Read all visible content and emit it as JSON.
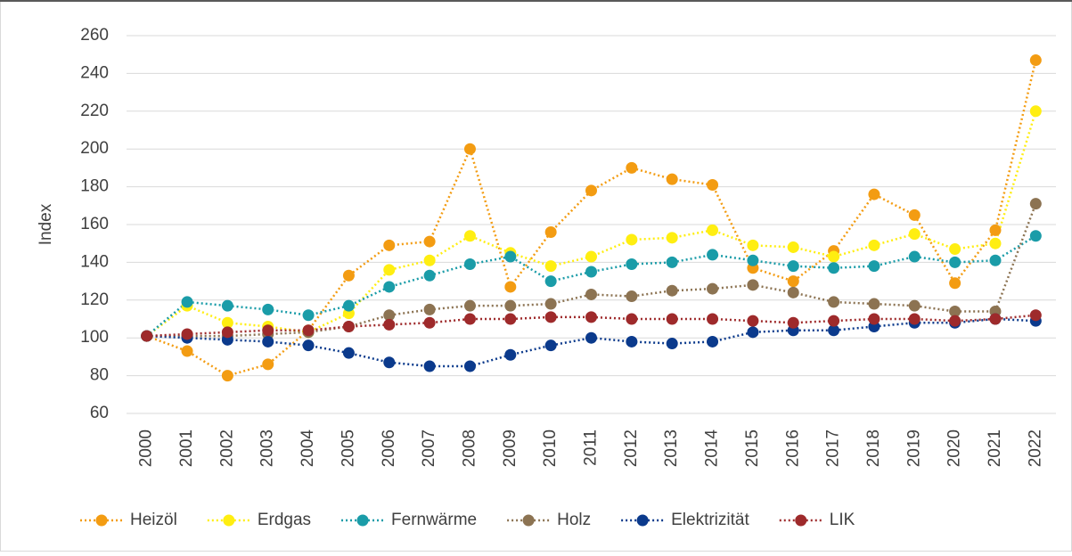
{
  "chart_data": {
    "type": "line",
    "y_label": "Index",
    "categories": [
      "2000",
      "2001",
      "2002",
      "2003",
      "2004",
      "2005",
      "2006",
      "2007",
      "2008",
      "2009",
      "2010",
      "2011",
      "2012",
      "2013",
      "2014",
      "2015",
      "2016",
      "2017",
      "2018",
      "2019",
      "2020",
      "2021",
      "2022"
    ],
    "ylim": [
      60,
      260
    ],
    "yticks": [
      60,
      80,
      100,
      120,
      140,
      160,
      180,
      200,
      220,
      240,
      260
    ],
    "grid": true,
    "legend": "bottom",
    "series": [
      {
        "name": "Heizöl",
        "color": "#f39c12",
        "values": [
          101,
          93,
          80,
          86,
          104,
          133,
          149,
          151,
          200,
          127,
          156,
          178,
          190,
          184,
          181,
          137,
          130,
          146,
          176,
          165,
          129,
          157,
          247
        ]
      },
      {
        "name": "Erdgas",
        "color": "#ffee11",
        "values": [
          101,
          117,
          108,
          106,
          103,
          113,
          136,
          141,
          154,
          145,
          138,
          143,
          152,
          153,
          157,
          149,
          148,
          143,
          149,
          155,
          147,
          150,
          220
        ]
      },
      {
        "name": "Fernwärme",
        "color": "#1a9ca8",
        "values": [
          101,
          119,
          117,
          115,
          112,
          117,
          127,
          133,
          139,
          143,
          130,
          135,
          139,
          140,
          144,
          141,
          138,
          137,
          138,
          143,
          140,
          141,
          154
        ]
      },
      {
        "name": "Holz",
        "color": "#8c7352",
        "values": [
          101,
          101,
          101,
          102,
          103,
          106,
          112,
          115,
          117,
          117,
          118,
          123,
          122,
          125,
          126,
          128,
          124,
          119,
          118,
          117,
          114,
          114,
          171
        ]
      },
      {
        "name": "Elektrizität",
        "color": "#0b3a8c",
        "values": [
          101,
          100,
          99,
          98,
          96,
          92,
          87,
          85,
          85,
          91,
          96,
          100,
          98,
          97,
          98,
          103,
          104,
          104,
          106,
          108,
          108,
          110,
          109
        ]
      },
      {
        "name": "LIK",
        "color": "#9e2a2b",
        "values": [
          101,
          102,
          103,
          104,
          104,
          106,
          107,
          108,
          110,
          110,
          111,
          111,
          110,
          110,
          110,
          109,
          108,
          109,
          110,
          110,
          109,
          110,
          112
        ]
      }
    ]
  }
}
